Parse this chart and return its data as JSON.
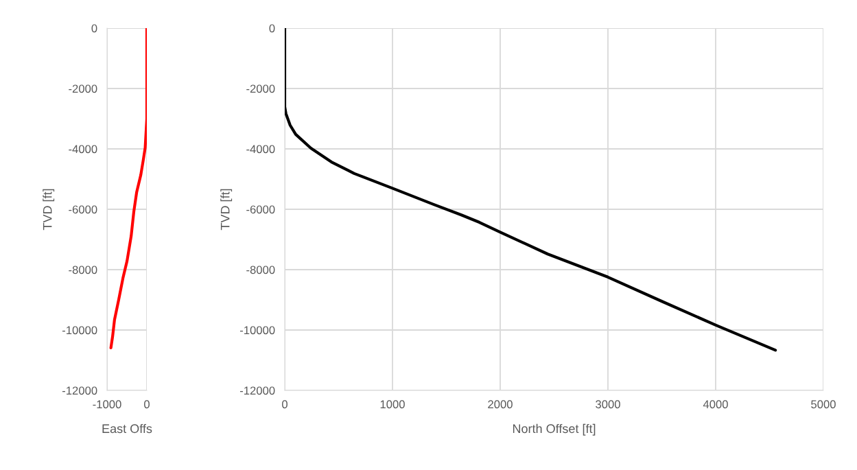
{
  "chart_data": [
    {
      "type": "line",
      "xlabel": "East Offs",
      "ylabel": "TVD [ft]",
      "xlim": [
        -1000,
        0
      ],
      "xticks": [
        -1000,
        0
      ],
      "ylim": [
        -12000,
        0
      ],
      "yticks": [
        -12000,
        -10000,
        -8000,
        -6000,
        -4000,
        -2000,
        0
      ],
      "grid": true,
      "series": [
        {
          "color": "#ff0000",
          "x": [
            0,
            0,
            -42,
            -91,
            -152,
            -255,
            -327,
            -394,
            -497,
            -600,
            -709,
            -812,
            -861,
            -903
          ],
          "values": [
            0,
            -3000,
            -3970,
            -4380,
            -4865,
            -5430,
            -6080,
            -6890,
            -7710,
            -8280,
            -9010,
            -9660,
            -10220,
            -10590
          ]
        }
      ]
    },
    {
      "type": "line",
      "xlabel": "North Offset [ft]",
      "ylabel": "TVD [ft]",
      "xlim": [
        0,
        5000
      ],
      "xticks": [
        0,
        1000,
        2000,
        3000,
        4000,
        5000
      ],
      "ylim": [
        -12000,
        0
      ],
      "yticks": [
        -12000,
        -10000,
        -8000,
        -6000,
        -4000,
        -2000,
        0
      ],
      "grid": true,
      "series": [
        {
          "color": "#000000",
          "x": [
            0,
            0,
            11,
            50,
            102,
            243,
            433,
            645,
            1004,
            1385,
            1639,
            1807,
            2000,
            2441,
            2999,
            3498,
            4005,
            4555
          ],
          "values": [
            0,
            -2606,
            -2834,
            -3215,
            -3520,
            -3977,
            -4434,
            -4815,
            -5310,
            -5844,
            -6187,
            -6432,
            -6759,
            -7483,
            -8245,
            -9045,
            -9845,
            -10667
          ]
        }
      ]
    }
  ]
}
